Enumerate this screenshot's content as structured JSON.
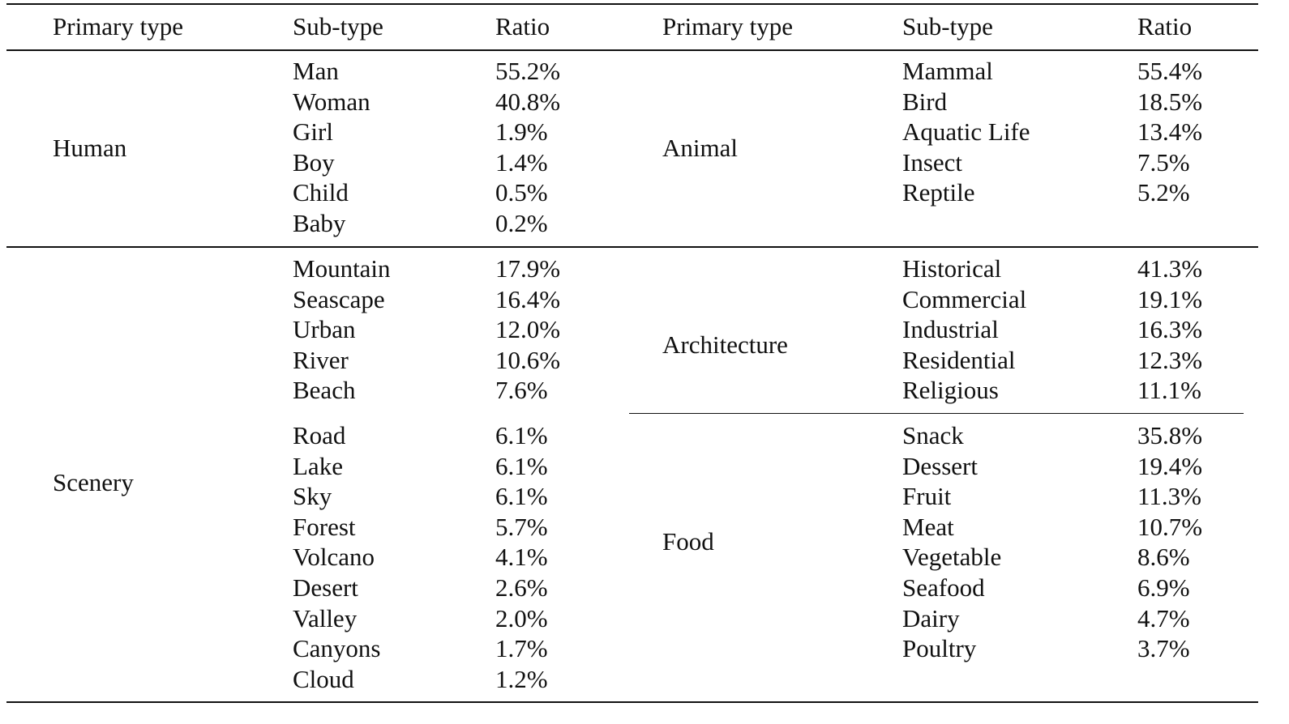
{
  "header": {
    "left": {
      "primary": "Primary type",
      "sub": "Sub-type",
      "ratio": "Ratio"
    },
    "right": {
      "primary": "Primary type",
      "sub": "Sub-type",
      "ratio": "Ratio"
    }
  },
  "human": {
    "label": "Human",
    "rows": [
      {
        "sub": "Man",
        "ratio": "55.2%"
      },
      {
        "sub": "Woman",
        "ratio": "40.8%"
      },
      {
        "sub": "Girl",
        "ratio": "1.9%"
      },
      {
        "sub": "Boy",
        "ratio": "1.4%"
      },
      {
        "sub": "Child",
        "ratio": "0.5%"
      },
      {
        "sub": "Baby",
        "ratio": "0.2%"
      }
    ]
  },
  "animal": {
    "label": "Animal",
    "rows": [
      {
        "sub": "Mammal",
        "ratio": "55.4%"
      },
      {
        "sub": "Bird",
        "ratio": "18.5%"
      },
      {
        "sub": "Aquatic Life",
        "ratio": "13.4%"
      },
      {
        "sub": "Insect",
        "ratio": "7.5%"
      },
      {
        "sub": "Reptile",
        "ratio": "5.2%"
      }
    ]
  },
  "scenery": {
    "label": "Scenery",
    "rows_a": [
      {
        "sub": "Mountain",
        "ratio": "17.9%"
      },
      {
        "sub": "Seascape",
        "ratio": "16.4%"
      },
      {
        "sub": "Urban",
        "ratio": "12.0%"
      },
      {
        "sub": "River",
        "ratio": "10.6%"
      },
      {
        "sub": "Beach",
        "ratio": "7.6%"
      }
    ],
    "rows_b": [
      {
        "sub": "Road",
        "ratio": "6.1%"
      },
      {
        "sub": "Lake",
        "ratio": "6.1%"
      },
      {
        "sub": "Sky",
        "ratio": "6.1%"
      },
      {
        "sub": "Forest",
        "ratio": "5.7%"
      },
      {
        "sub": "Volcano",
        "ratio": "4.1%"
      },
      {
        "sub": "Desert",
        "ratio": "2.6%"
      },
      {
        "sub": "Valley",
        "ratio": "2.0%"
      },
      {
        "sub": "Canyons",
        "ratio": "1.7%"
      },
      {
        "sub": "Cloud",
        "ratio": "1.2%"
      }
    ]
  },
  "architecture": {
    "label": "Architecture",
    "rows": [
      {
        "sub": "Historical",
        "ratio": "41.3%"
      },
      {
        "sub": "Commercial",
        "ratio": "19.1%"
      },
      {
        "sub": "Industrial",
        "ratio": "16.3%"
      },
      {
        "sub": "Residential",
        "ratio": "12.3%"
      },
      {
        "sub": "Religious",
        "ratio": "11.1%"
      }
    ]
  },
  "food": {
    "label": "Food",
    "rows": [
      {
        "sub": "Snack",
        "ratio": "35.8%"
      },
      {
        "sub": "Dessert",
        "ratio": "19.4%"
      },
      {
        "sub": "Fruit",
        "ratio": "11.3%"
      },
      {
        "sub": "Meat",
        "ratio": "10.7%"
      },
      {
        "sub": "Vegetable",
        "ratio": "8.6%"
      },
      {
        "sub": "Seafood",
        "ratio": "6.9%"
      },
      {
        "sub": "Dairy",
        "ratio": "4.7%"
      },
      {
        "sub": "Poultry",
        "ratio": "3.7%"
      }
    ]
  }
}
